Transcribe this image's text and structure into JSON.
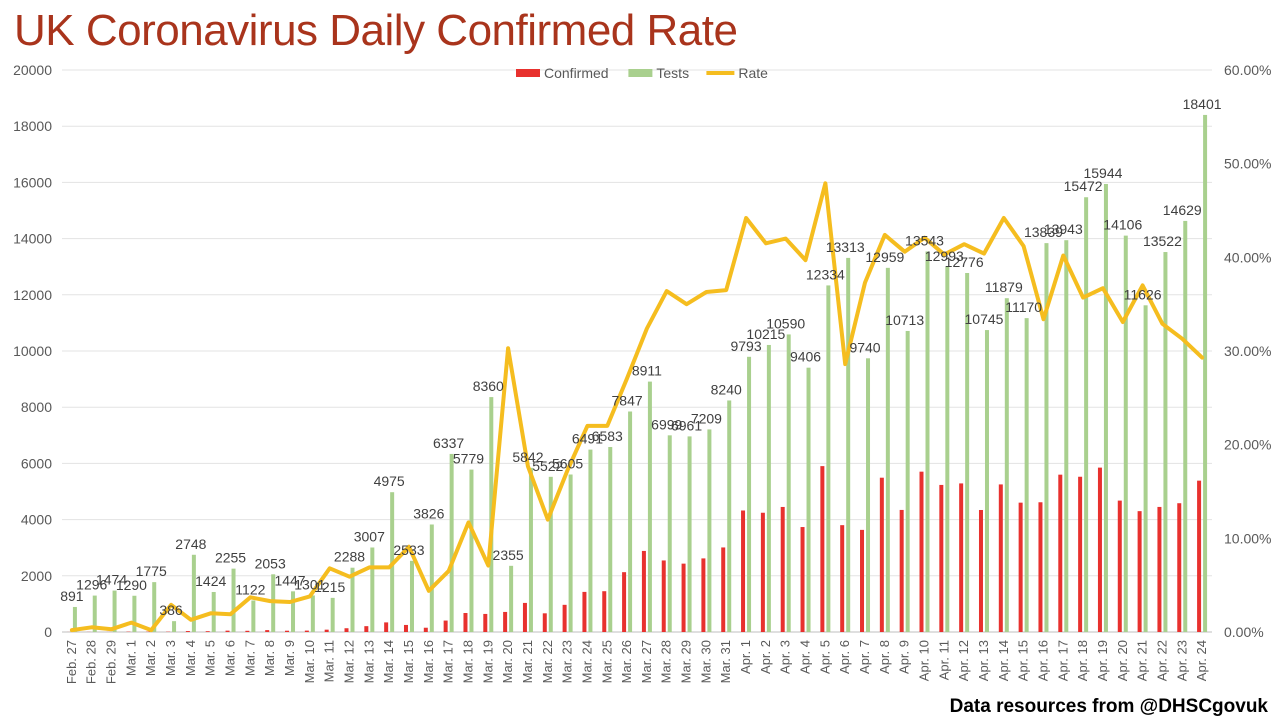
{
  "title": "UK Coronavirus Daily Confirmed Rate",
  "credit": "Data resources from @DHSCgovuk",
  "colors": {
    "confirmed": "#e8312e",
    "tests": "#a9d08e",
    "rate": "#f5bd1f",
    "title": "#a9341c"
  },
  "chart_data": {
    "type": "bar",
    "title": "UK Coronavirus Daily Confirmed Rate",
    "categories": [
      "Feb. 27",
      "Feb. 28",
      "Feb. 29",
      "Mar. 1",
      "Mar. 2",
      "Mar. 3",
      "Mar. 4",
      "Mar. 5",
      "Mar. 6",
      "Mar. 7",
      "Mar. 8",
      "Mar. 9",
      "Mar. 10",
      "Mar. 11",
      "Mar. 12",
      "Mar. 13",
      "Mar. 14",
      "Mar. 15",
      "Mar. 16",
      "Mar. 17",
      "Mar. 18",
      "Mar. 19",
      "Mar. 20",
      "Mar. 21",
      "Mar. 22",
      "Mar. 23",
      "Mar. 24",
      "Mar. 25",
      "Mar. 26",
      "Mar. 27",
      "Mar. 28",
      "Mar. 29",
      "Mar. 30",
      "Mar. 31",
      "Apr. 1",
      "Apr. 2",
      "Apr. 3",
      "Apr. 4",
      "Apr. 5",
      "Apr. 6",
      "Apr. 7",
      "Apr. 8",
      "Apr. 9",
      "Apr. 10",
      "Apr. 11",
      "Apr. 12",
      "Apr. 13",
      "Apr. 14",
      "Apr. 15",
      "Apr. 16",
      "Apr. 17",
      "Apr. 18",
      "Apr. 19",
      "Apr. 20",
      "Apr. 21",
      "Apr. 22",
      "Apr. 23",
      "Apr. 24"
    ],
    "series": [
      {
        "name": "Confirmed",
        "axis": "left",
        "kind": "bar",
        "values": [
          2,
          4,
          4,
          12,
          13,
          11,
          34,
          29,
          48,
          43,
          67,
          46,
          50,
          83,
          134,
          208,
          342,
          251,
          152,
          407,
          676,
          643,
          714,
          1035,
          665,
          967,
          1427,
          1452,
          2129,
          2885,
          2546,
          2433,
          2619,
          3009,
          4324,
          4244,
          4450,
          3735,
          5903,
          3802,
          3634,
          5491,
          4344,
          5706,
          5234,
          5288,
          4342,
          5252,
          4603,
          4617,
          5599,
          5525,
          5850,
          4676,
          4301,
          4451,
          4583,
          5386
        ]
      },
      {
        "name": "Tests",
        "axis": "left",
        "kind": "bar",
        "labeled": true,
        "values": [
          891,
          1296,
          1474,
          1290,
          1775,
          386,
          2748,
          1424,
          2255,
          1122,
          2053,
          1447,
          1301,
          1215,
          2288,
          3007,
          4975,
          2533,
          3826,
          6337,
          5779,
          8360,
          2355,
          5842,
          5522,
          5605,
          6491,
          6583,
          7847,
          8911,
          6999,
          6961,
          7209,
          8240,
          9793,
          10215,
          10590,
          9406,
          12334,
          13313,
          9740,
          12959,
          10713,
          13543,
          12993,
          12776,
          10745,
          11879,
          11170,
          13839,
          13943,
          15472,
          15944,
          14106,
          11626,
          13522,
          14629,
          18401
        ]
      },
      {
        "name": "Rate",
        "axis": "right",
        "kind": "line",
        "values": [
          0.2,
          0.5,
          0.3,
          1.0,
          0.2,
          2.9,
          1.3,
          2.0,
          1.9,
          3.7,
          3.3,
          3.2,
          3.8,
          6.8,
          5.9,
          6.9,
          6.9,
          9.1,
          4.4,
          6.5,
          11.7,
          7.1,
          30.3,
          17.7,
          12.0,
          17.3,
          22.0,
          22.0,
          27.1,
          32.4,
          36.4,
          35.0,
          36.3,
          36.5,
          44.2,
          41.5,
          42.0,
          39.7,
          47.9,
          28.6,
          37.3,
          42.4,
          40.6,
          42.1,
          40.3,
          41.4,
          40.4,
          44.2,
          41.2,
          33.4,
          40.2,
          35.7,
          36.7,
          33.1,
          37.0,
          32.9,
          31.3,
          29.3
        ]
      }
    ],
    "legend": [
      "Confirmed",
      "Tests",
      "Rate"
    ],
    "legend_position": "top-center",
    "ylim": [
      0,
      20000
    ],
    "y_ticks": [
      0,
      2000,
      4000,
      6000,
      8000,
      10000,
      12000,
      14000,
      16000,
      18000,
      20000
    ],
    "y2lim": [
      0,
      60
    ],
    "y2_ticks": [
      "0.00%",
      "10.00%",
      "20.00%",
      "30.00%",
      "40.00%",
      "50.00%",
      "60.00%"
    ],
    "grid": true
  }
}
